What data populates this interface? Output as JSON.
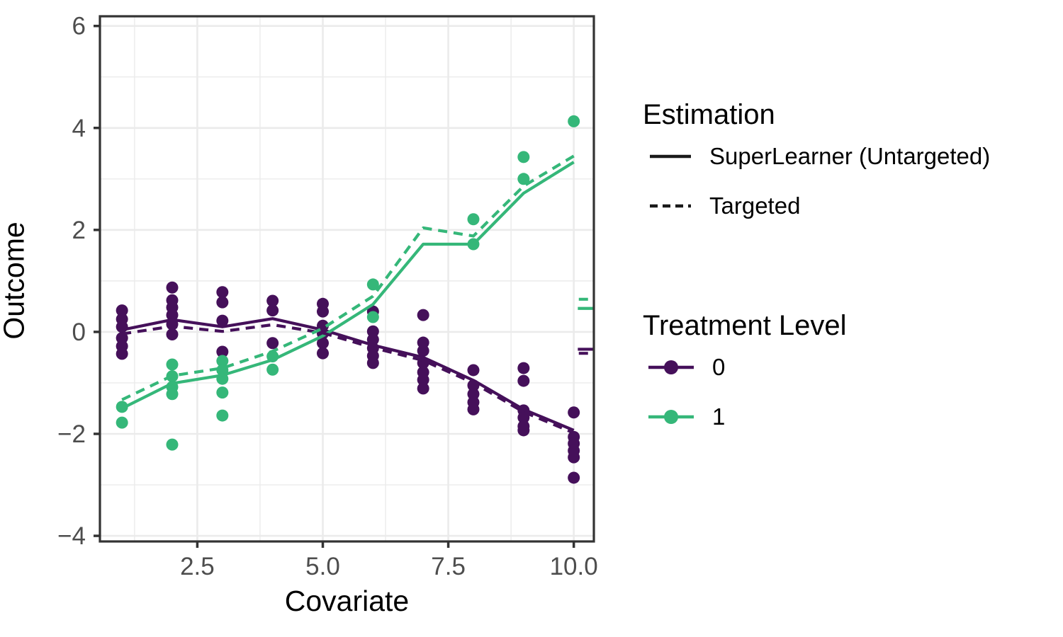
{
  "figure": {
    "background": "#ffffff"
  },
  "colors": {
    "treatment0": "#45105a",
    "treatment1": "#35b779",
    "panel_border": "#333333",
    "gridline": "#ebebeb",
    "tick_label": "#4d4d4d",
    "tick_mark": "#333333",
    "legend_key": "#1a1a1a"
  },
  "axes": {
    "x_label": "Covariate",
    "y_label": "Outcome",
    "x_ticks": [
      {
        "value": 2.5,
        "label": "2.5"
      },
      {
        "value": 5.0,
        "label": "5.0"
      },
      {
        "value": 7.5,
        "label": "7.5"
      },
      {
        "value": 10.0,
        "label": "10.0"
      }
    ],
    "y_ticks": [
      {
        "value": 6,
        "label": "6"
      },
      {
        "value": 4,
        "label": "4"
      },
      {
        "value": 2,
        "label": "2"
      },
      {
        "value": 0,
        "label": "0"
      },
      {
        "value": -2,
        "label": "−2"
      },
      {
        "value": -4,
        "label": "−4"
      }
    ],
    "x_minor": [
      1.25,
      3.75,
      6.25,
      8.75
    ],
    "y_minor": [
      5,
      3,
      1,
      -1,
      -3
    ]
  },
  "chart_data": {
    "type": "scatter",
    "title": "",
    "xlabel": "Covariate",
    "ylabel": "Outcome",
    "xlim": [
      0.56,
      10.4
    ],
    "ylim": [
      -4.11,
      6.19
    ],
    "grid": true,
    "legend_position": "right",
    "series": [
      {
        "name": "Treatment 0 observations",
        "type": "scatter",
        "color_key": "treatment0",
        "points": [
          [
            1,
            0.42
          ],
          [
            1,
            0.25
          ],
          [
            1,
            0.1
          ],
          [
            1,
            -0.12
          ],
          [
            1,
            -0.28
          ],
          [
            1,
            -0.43
          ],
          [
            2,
            0.87
          ],
          [
            2,
            0.62
          ],
          [
            2,
            0.48
          ],
          [
            2,
            0.33
          ],
          [
            2,
            0.15
          ],
          [
            2,
            -0.05
          ],
          [
            3,
            0.78
          ],
          [
            3,
            0.58
          ],
          [
            3,
            0.22
          ],
          [
            3,
            -0.39
          ],
          [
            4,
            0.61
          ],
          [
            4,
            0.42
          ],
          [
            4,
            -0.22
          ],
          [
            5,
            0.55
          ],
          [
            5,
            0.4
          ],
          [
            5,
            0.12
          ],
          [
            5,
            -0.03
          ],
          [
            5,
            -0.22
          ],
          [
            5,
            -0.42
          ],
          [
            6,
            0.4
          ],
          [
            6,
            0.01
          ],
          [
            6,
            -0.15
          ],
          [
            6,
            -0.32
          ],
          [
            6,
            -0.47
          ],
          [
            6,
            -0.61
          ],
          [
            7,
            0.33
          ],
          [
            7,
            -0.21
          ],
          [
            7,
            -0.37
          ],
          [
            7,
            -0.61
          ],
          [
            7,
            -0.79
          ],
          [
            7,
            -0.94
          ],
          [
            7,
            -1.11
          ],
          [
            8,
            -0.75
          ],
          [
            8,
            -1.05
          ],
          [
            8,
            -1.22
          ],
          [
            8,
            -1.38
          ],
          [
            8,
            -1.52
          ],
          [
            9,
            -0.71
          ],
          [
            9,
            -0.96
          ],
          [
            9,
            -1.54
          ],
          [
            9,
            -1.68
          ],
          [
            9,
            -1.85
          ],
          [
            9,
            -1.93
          ],
          [
            10,
            -1.58
          ],
          [
            10,
            -2.06
          ],
          [
            10,
            -2.19
          ],
          [
            10,
            -2.33
          ],
          [
            10,
            -2.46
          ],
          [
            10,
            -2.86
          ]
        ]
      },
      {
        "name": "Treatment 1 observations",
        "type": "scatter",
        "color_key": "treatment1",
        "points": [
          [
            1,
            -1.47
          ],
          [
            1,
            -1.78
          ],
          [
            2,
            -0.64
          ],
          [
            2,
            -0.87
          ],
          [
            2,
            -1.08
          ],
          [
            2,
            -1.22
          ],
          [
            2,
            -2.21
          ],
          [
            3,
            -0.57
          ],
          [
            3,
            -0.75
          ],
          [
            3,
            -0.92
          ],
          [
            3,
            -1.19
          ],
          [
            3,
            -1.64
          ],
          [
            4,
            -0.48
          ],
          [
            4,
            -0.74
          ],
          [
            6,
            0.93
          ],
          [
            6,
            0.29
          ],
          [
            8,
            2.21
          ],
          [
            8,
            1.72
          ],
          [
            9,
            3.43
          ],
          [
            9,
            3.0
          ],
          [
            10,
            4.13
          ]
        ]
      },
      {
        "name": "Treatment 0 — SuperLearner (Untargeted)",
        "type": "line",
        "dash": false,
        "color_key": "treatment0",
        "x": [
          1,
          2,
          3,
          4,
          5,
          6,
          7,
          8,
          9,
          10
        ],
        "y": [
          0.04,
          0.24,
          0.1,
          0.26,
          0.04,
          -0.26,
          -0.5,
          -0.95,
          -1.52,
          -1.93
        ]
      },
      {
        "name": "Treatment 1 — SuperLearner (Untargeted)",
        "type": "line",
        "dash": false,
        "color_key": "treatment1",
        "x": [
          1,
          2,
          3,
          4,
          5,
          6,
          7,
          8,
          9,
          10
        ],
        "y": [
          -1.5,
          -1.01,
          -0.85,
          -0.55,
          -0.08,
          0.54,
          1.72,
          1.72,
          2.72,
          3.33
        ]
      },
      {
        "name": "Treatment 0 — Targeted",
        "type": "line",
        "dash": true,
        "color_key": "treatment0",
        "x": [
          1,
          2,
          3,
          4,
          5,
          6,
          7,
          8,
          9,
          10
        ],
        "y": [
          -0.04,
          0.11,
          0.01,
          0.14,
          -0.02,
          -0.31,
          -0.56,
          -1.0,
          -1.57,
          -1.98
        ]
      },
      {
        "name": "Treatment 1 — Targeted",
        "type": "line",
        "dash": true,
        "color_key": "treatment1",
        "x": [
          1,
          2,
          3,
          4,
          5,
          6,
          7,
          8,
          9,
          10
        ],
        "y": [
          -1.33,
          -0.86,
          -0.71,
          -0.38,
          0.07,
          0.7,
          2.04,
          1.88,
          2.86,
          3.45
        ]
      }
    ],
    "edge_segments": [
      {
        "color_key": "treatment1",
        "dash": true,
        "x": [
          10.1,
          10.42
        ],
        "y": 0.64
      },
      {
        "color_key": "treatment1",
        "dash": false,
        "x": [
          10.08,
          10.42
        ],
        "y": 0.46
      },
      {
        "color_key": "treatment0",
        "dash": false,
        "x": [
          10.08,
          10.42
        ],
        "y": -0.34
      },
      {
        "color_key": "treatment0",
        "dash": true,
        "x": [
          10.1,
          10.42
        ],
        "y": -0.42
      }
    ]
  },
  "legends": {
    "estimation": {
      "title": "Estimation",
      "items": [
        {
          "label": "SuperLearner (Untargeted)",
          "style": "solid"
        },
        {
          "label": "Targeted",
          "style": "dashed"
        }
      ]
    },
    "treatment": {
      "title": "Treatment Level",
      "items": [
        {
          "label": "0",
          "color_key": "treatment0"
        },
        {
          "label": "1",
          "color_key": "treatment1"
        }
      ]
    }
  }
}
